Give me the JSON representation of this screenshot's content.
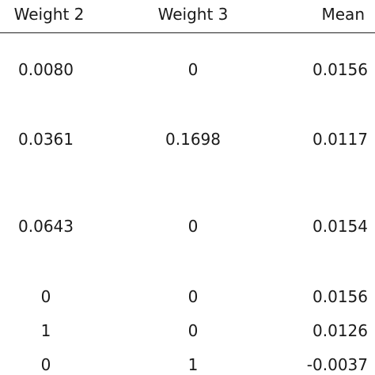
{
  "table": {
    "headers": [
      "Weight 2",
      "Weight 3",
      "Mean"
    ],
    "rows": [
      [
        "0.0080",
        "0",
        "0.0156"
      ],
      [
        "0.0361",
        "0.1698",
        "0.0117"
      ],
      [
        "0.0643",
        "0",
        "0.0154"
      ],
      [
        "0",
        "0",
        "0.0156"
      ],
      [
        "1",
        "0",
        "0.0126"
      ],
      [
        "0",
        "1",
        "-0.0037"
      ]
    ]
  }
}
